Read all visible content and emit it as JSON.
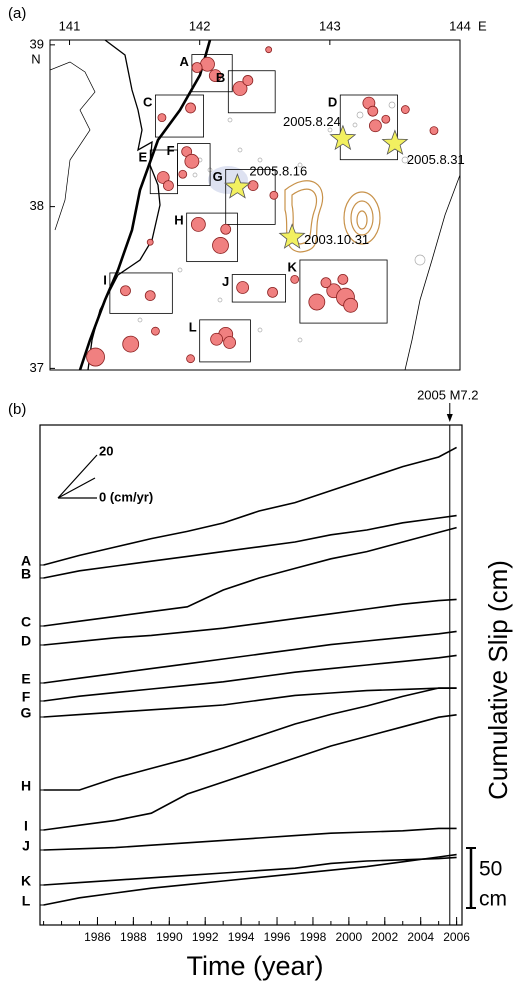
{
  "panel_a": {
    "label": "(a)",
    "xlim": [
      140.85,
      144.0
    ],
    "ylim": [
      36.99,
      39.03
    ],
    "xticks": [
      141,
      142,
      143,
      144
    ],
    "yticks": [
      37,
      38,
      39
    ],
    "x_unit": "E",
    "y_unit": "N",
    "boxes": [
      {
        "label": "A",
        "lon": [
          141.94,
          142.25
        ],
        "lat": [
          38.94,
          38.71
        ]
      },
      {
        "label": "B",
        "lon": [
          142.22,
          142.58
        ],
        "lat": [
          38.84,
          38.58
        ]
      },
      {
        "label": "C",
        "lon": [
          141.66,
          142.03
        ],
        "lat": [
          38.69,
          38.43
        ]
      },
      {
        "label": "D",
        "lon": [
          143.08,
          143.52
        ],
        "lat": [
          38.69,
          38.29
        ]
      },
      {
        "label": "E",
        "lon": [
          141.62,
          141.83
        ],
        "lat": [
          38.35,
          38.08
        ]
      },
      {
        "label": "F",
        "lon": [
          141.83,
          142.08
        ],
        "lat": [
          38.39,
          38.13
        ]
      },
      {
        "label": "G",
        "lon": [
          142.2,
          142.58
        ],
        "lat": [
          38.23,
          37.89
        ]
      },
      {
        "label": "H",
        "lon": [
          141.9,
          142.29
        ],
        "lat": [
          37.96,
          37.66
        ]
      },
      {
        "label": "I",
        "lon": [
          141.31,
          141.79
        ],
        "lat": [
          37.59,
          37.34
        ]
      },
      {
        "label": "J",
        "lon": [
          142.25,
          142.66
        ],
        "lat": [
          37.58,
          37.41
        ]
      },
      {
        "label": "K",
        "lon": [
          142.77,
          143.44
        ],
        "lat": [
          37.67,
          37.28
        ]
      },
      {
        "label": "L",
        "lon": [
          142.0,
          142.39
        ],
        "lat": [
          37.3,
          37.04
        ]
      }
    ],
    "stars": [
      {
        "label": "2005.8.16",
        "lon": 142.29,
        "lat": 38.12
      },
      {
        "label": "2005.8.24",
        "lon": 143.1,
        "lat": 38.42
      },
      {
        "label": "2005.8.31",
        "lon": 143.5,
        "lat": 38.39
      },
      {
        "label": "2003.10.31",
        "lon": 142.71,
        "lat": 37.81
      }
    ],
    "events": {
      "lon": [
        142.06,
        142.12,
        141.98,
        142.53,
        142.31,
        142.37,
        141.93,
        141.71,
        141.9,
        141.94,
        141.72,
        141.76,
        141.87,
        142.41,
        141.99,
        142.16,
        142.2,
        142.57,
        143.3,
        143.33,
        143.35,
        143.43,
        143.58,
        143.8,
        142.9,
        143.03,
        143.12,
        143.16,
        142.97,
        143.1,
        142.33,
        142.56,
        142.73,
        141.43,
        141.62,
        141.2,
        141.47,
        142.2,
        142.13,
        142.23,
        141.93,
        141.66,
        141.62
      ],
      "lat": [
        38.88,
        38.81,
        38.86,
        38.97,
        38.73,
        38.78,
        38.61,
        38.55,
        38.34,
        38.28,
        38.18,
        38.13,
        38.2,
        38.13,
        37.89,
        37.76,
        37.86,
        38.07,
        38.64,
        38.59,
        38.5,
        38.54,
        38.6,
        38.47,
        37.41,
        37.48,
        37.44,
        37.39,
        37.53,
        37.55,
        37.5,
        37.47,
        37.55,
        37.48,
        37.45,
        37.07,
        37.15,
        37.21,
        37.18,
        37.16,
        37.06,
        37.23,
        37.78
      ],
      "size": [
        7,
        6,
        5,
        3,
        7,
        5,
        5,
        4,
        5,
        7,
        6,
        5,
        4,
        5,
        7,
        8,
        5,
        4,
        6,
        5,
        6,
        4,
        4,
        4,
        8,
        7,
        9,
        7,
        5,
        5,
        6,
        5,
        4,
        5,
        5,
        9,
        8,
        7,
        6,
        6,
        4,
        4,
        3
      ],
      "color": "#f08080"
    }
  },
  "chart_data": {
    "type": "line",
    "label": "(b)",
    "xlabel": "Time (year)",
    "ylabel": "Cumulative Slip (cm)",
    "x": [
      1983,
      1985,
      1987,
      1989,
      1991,
      1993,
      1995,
      1997,
      1999,
      2001,
      2003,
      2005,
      2006
    ],
    "xlim": [
      1982.8,
      2006.3
    ],
    "xticks": [
      1986,
      1988,
      1990,
      1992,
      1994,
      1996,
      1998,
      2000,
      2002,
      2004,
      2006
    ],
    "series": [
      {
        "name": "A",
        "color": "#000000",
        "values": [
          0,
          8,
          15,
          22,
          28,
          35,
          45,
          52,
          62,
          72,
          82,
          90,
          98
        ]
      },
      {
        "name": "B",
        "color": "#000000",
        "values": [
          0,
          6,
          10,
          14,
          18,
          22,
          26,
          30,
          36,
          40,
          46,
          50,
          52
        ]
      },
      {
        "name": "C",
        "color": "#000000",
        "values": [
          0,
          4,
          8,
          12,
          16,
          30,
          40,
          48,
          56,
          62,
          70,
          78,
          82
        ]
      },
      {
        "name": "D",
        "color": "#000000",
        "values": [
          0,
          3,
          6,
          8,
          11,
          14,
          18,
          22,
          26,
          30,
          34,
          37,
          38
        ]
      },
      {
        "name": "E",
        "color": "#000000",
        "values": [
          0,
          4,
          8,
          12,
          16,
          20,
          24,
          28,
          32,
          35,
          38,
          41,
          43
        ]
      },
      {
        "name": "F",
        "color": "#000000",
        "values": [
          0,
          4,
          7,
          10,
          13,
          16,
          20,
          24,
          27,
          30,
          33,
          36,
          38
        ]
      },
      {
        "name": "G",
        "color": "#000000",
        "values": [
          0,
          2,
          4,
          6,
          8,
          10,
          14,
          18,
          20,
          22,
          23,
          24,
          24
        ]
      },
      {
        "name": "H",
        "color": "#000000",
        "values": [
          0,
          0,
          10,
          18,
          26,
          35,
          45,
          55,
          63,
          70,
          78,
          85,
          85
        ]
      },
      {
        "name": "I",
        "color": "#000000",
        "values": [
          0,
          4,
          8,
          14,
          30,
          40,
          50,
          60,
          70,
          78,
          86,
          94,
          96
        ]
      },
      {
        "name": "J",
        "color": "#000000",
        "values": [
          0,
          1,
          2,
          4,
          6,
          8,
          10,
          12,
          14,
          15,
          16,
          18,
          18
        ]
      },
      {
        "name": "K",
        "color": "#000000",
        "values": [
          0,
          2,
          4,
          6,
          8,
          10,
          12,
          14,
          18,
          20,
          21,
          22,
          23
        ]
      },
      {
        "name": "L",
        "color": "#000000",
        "values": [
          0,
          6,
          10,
          14,
          17,
          20,
          23,
          26,
          29,
          32,
          36,
          40,
          42
        ]
      }
    ],
    "marker_time": 2005.62,
    "marker_label": "2005 M7.2",
    "rate_legend": {
      "max": 20,
      "min": "0 (cm/yr)"
    },
    "scale_bar": {
      "value": 50,
      "unit": "cm"
    }
  }
}
